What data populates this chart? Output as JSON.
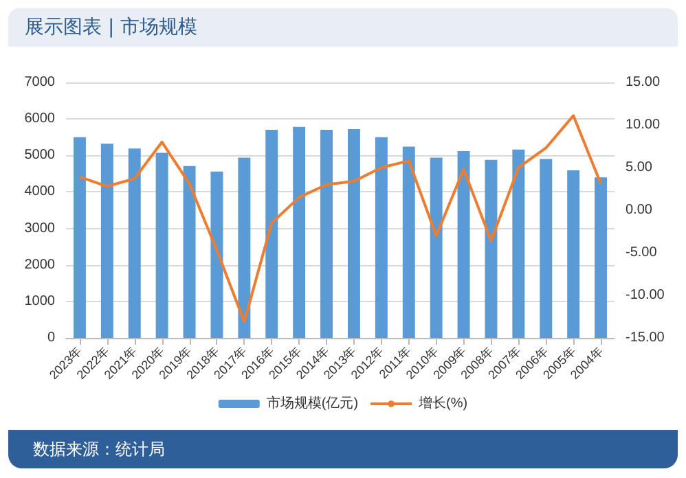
{
  "chart_data": {
    "type": "bar",
    "title": "展示图表 | 市场规模",
    "categories": [
      "2023年",
      "2022年",
      "2021年",
      "2020年",
      "2019年",
      "2018年",
      "2017年",
      "2016年",
      "2015年",
      "2014年",
      "2013年",
      "2012年",
      "2011年",
      "2010年",
      "2009年",
      "2008年",
      "2007年",
      "2006年",
      "2005年",
      "2004年"
    ],
    "series": [
      {
        "name": "市场规模(亿元)",
        "color": "#5b9bd5",
        "values": [
          5500,
          5320,
          5190,
          5070,
          4710,
          4560,
          4940,
          5700,
          5780,
          5700,
          5720,
          5500,
          5240,
          4940,
          5120,
          4880,
          5160,
          4900,
          4590,
          4400
        ]
      },
      {
        "name": "增长(%)",
        "type": "line",
        "axis": "y2",
        "color": "#ed7d31",
        "values": [
          3.9,
          2.8,
          3.7,
          8.0,
          3.1,
          -4.7,
          -13.1,
          -1.5,
          1.5,
          3.0,
          3.4,
          5.0,
          5.8,
          -3.0,
          4.8,
          -3.6,
          5.0,
          7.3,
          11.1,
          3.1
        ]
      }
    ],
    "ylim": [
      0,
      7000
    ],
    "yticks": [
      0,
      1000,
      2000,
      3000,
      4000,
      5000,
      6000,
      7000
    ],
    "y2lim": [
      -15,
      15
    ],
    "y2ticks": [
      {
        "value": -15,
        "label": "-15.00"
      },
      {
        "value": -10,
        "label": "-10.00"
      },
      {
        "value": -5,
        "label": "-5.00"
      },
      {
        "value": 0,
        "label": "0.00"
      },
      {
        "value": 5,
        "label": "5.00"
      },
      {
        "value": 10,
        "label": "10.00"
      },
      {
        "value": 15,
        "label": "15.00"
      }
    ],
    "grid": "y",
    "legend": "bottom",
    "marker": "none",
    "annotations": [
      "数据来源：统计局"
    ]
  }
}
